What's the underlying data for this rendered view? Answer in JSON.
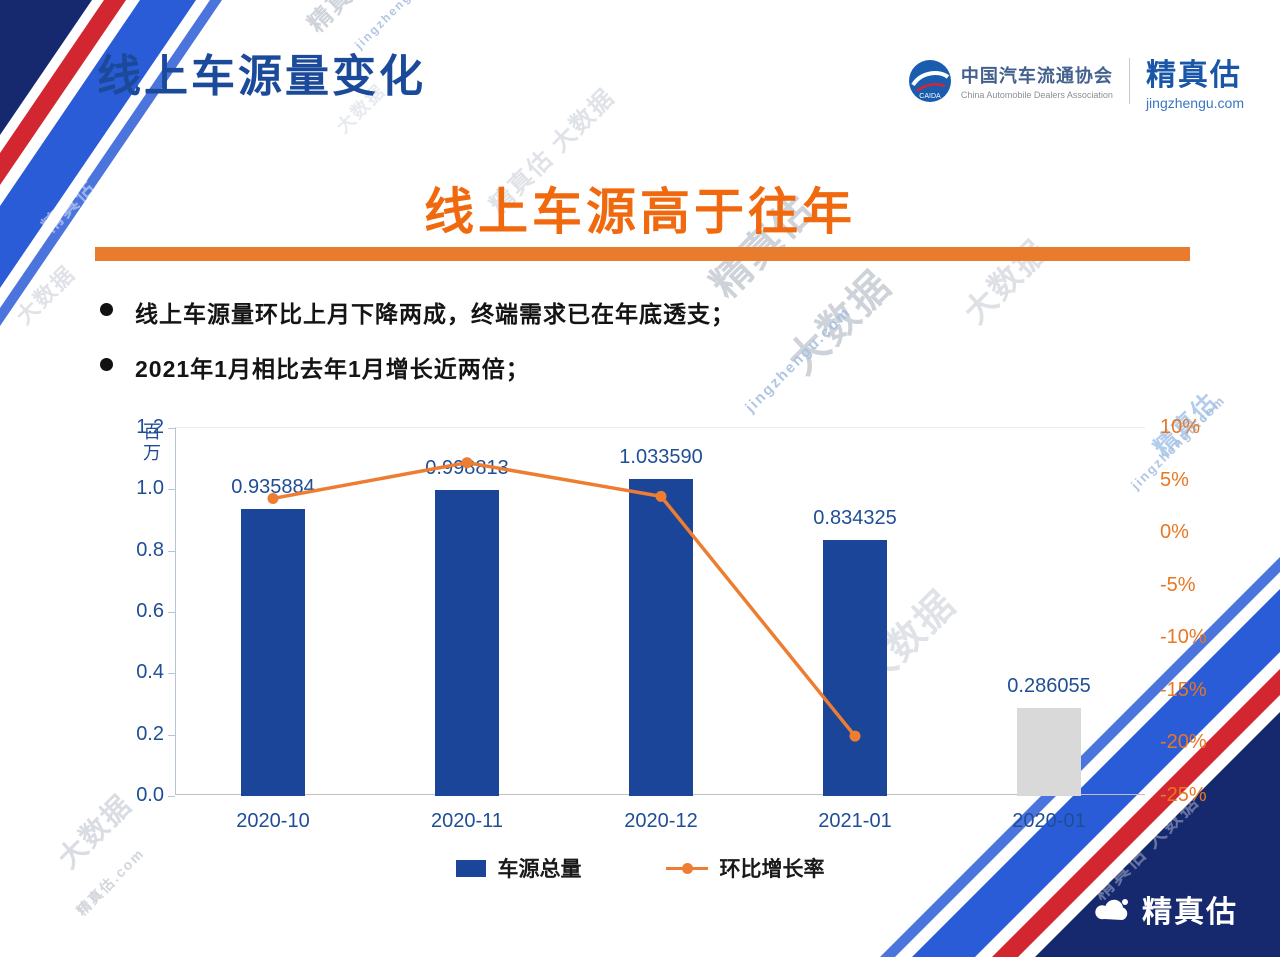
{
  "header": {
    "title": "线上车源量变化",
    "cada": {
      "name_cn": "中国汽车流通协会",
      "name_en": "China Automobile Dealers Association",
      "icon_label": "CAIDA"
    },
    "brand": {
      "name": "精真估",
      "domain": "jingzhengu.com"
    }
  },
  "main": {
    "title": "线上车源高于往年",
    "bullets": [
      "线上车源量环比上月下降两成，终端需求已在年底透支；",
      "2021年1月相比去年1月增长近两倍；"
    ]
  },
  "chart_data": {
    "type": "bar+line",
    "categories": [
      "2020-10",
      "2020-11",
      "2020-12",
      "2021-01",
      "2020-01"
    ],
    "bar_series": {
      "name": "车源总量",
      "values": [
        0.935884,
        0.998813,
        1.03359,
        0.834325,
        0.286055
      ],
      "labels": [
        "0.935884",
        "0.998813",
        "1.033590",
        "0.834325",
        "0.286055"
      ],
      "colors": [
        "#1b4599",
        "#1b4599",
        "#1b4599",
        "#1b4599",
        "#d9d9d9"
      ]
    },
    "line_series": {
      "name": "环比增长率",
      "values": [
        3.3,
        6.7,
        3.5,
        -19.3
      ],
      "color": "#ed7d31",
      "note": "line spans first four categories only"
    },
    "left_axis": {
      "label": "百万",
      "min": 0,
      "max": 1.2,
      "ticks": [
        "1.2",
        "1.0",
        "0.8",
        "0.6",
        "0.4",
        "0.2",
        "0.0"
      ]
    },
    "right_axis": {
      "min": -25,
      "max": 10,
      "ticks": [
        "10%",
        "5%",
        "0%",
        "-5%",
        "-10%",
        "-15%",
        "-20%",
        "-25%"
      ]
    },
    "legend": [
      {
        "label": "车源总量",
        "type": "bar",
        "color": "#1b4599"
      },
      {
        "label": "环比增长率",
        "type": "line",
        "color": "#ed7d31"
      }
    ],
    "grid": false,
    "legend_position": "bottom"
  },
  "footer": {
    "brand": "精真估"
  },
  "watermarks": [
    "精真估",
    "大数据",
    "jingzhengu.com",
    "精真估.com",
    "精真估 大数据"
  ],
  "colors": {
    "title_blue": "#1b4a9b",
    "accent_orange": "#f0690e",
    "divider_orange": "#e97b2c",
    "bar_blue": "#1b4599",
    "bar_gray": "#d9d9d9",
    "line_orange": "#ed7d31",
    "axis_label_blue": "#1f4e96",
    "right_axis_orange": "#e87722",
    "corner_navy": "#16296e",
    "corner_red": "#d22730",
    "corner_blue": "#2b5cd7"
  }
}
